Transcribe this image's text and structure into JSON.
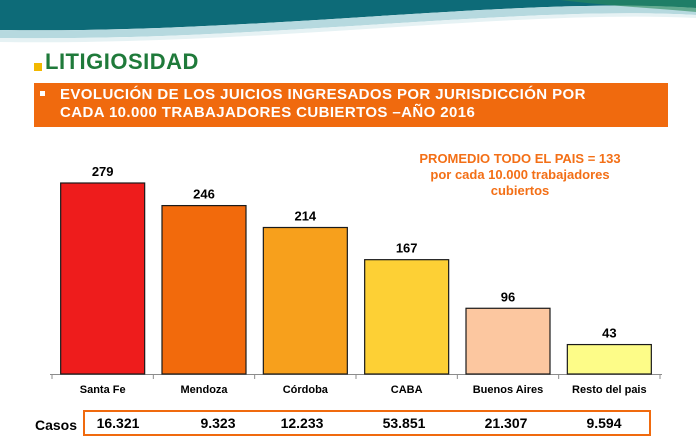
{
  "header": {
    "section_title": "LITIGIOSIDAD",
    "subtitle_line1": "EVOLUCIÓN DE LOS JUICIOS INGRESADOS POR JURISDICCIÓN POR",
    "subtitle_line2": "CADA 10.000 TRABAJADORES CUBIERTOS –AÑO 2016"
  },
  "annotation": {
    "line1": "PROMEDIO  TODO EL PAIS = 133",
    "line2": "por cada 10.000 trabajadores",
    "line3": "cubiertos"
  },
  "casos": {
    "label": "Casos",
    "values": [
      "16.321",
      "9.323",
      "12.233",
      "53.851",
      "21.307",
      "9.594"
    ]
  },
  "colors": {
    "accent": "#f06a0e",
    "title_green": "#1f7a3a",
    "bar_colors": [
      "#ee1c1c",
      "#f26a0c",
      "#f7a01c",
      "#fdd035",
      "#fcc7a0",
      "#fdfc88"
    ]
  },
  "chart_data": {
    "type": "bar",
    "categories": [
      "Santa Fe",
      "Mendoza",
      "Córdoba",
      "CABA",
      "Buenos Aires",
      "Resto del pais"
    ],
    "values": [
      279,
      246,
      214,
      167,
      96,
      43
    ],
    "data_labels": [
      "279",
      "246",
      "214",
      "167",
      "96",
      "43"
    ],
    "title": "EVOLUCIÓN DE LOS JUICIOS INGRESADOS POR JURISDICCIÓN POR CADA 10.000 TRABAJADORES CUBIERTOS –AÑO 2016",
    "xlabel": "",
    "ylabel": "",
    "ylim": [
      0,
      300
    ],
    "grid": false,
    "legend": "none"
  }
}
